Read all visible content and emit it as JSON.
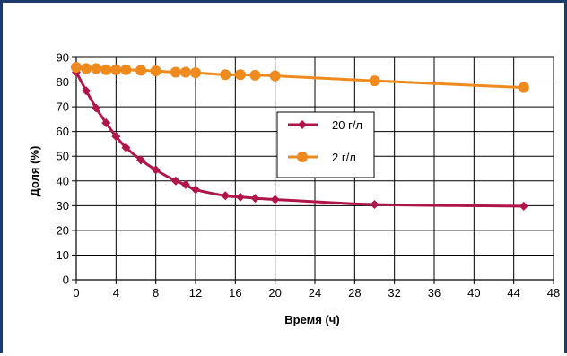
{
  "chart_data": {
    "type": "line",
    "xlabel": "Время (ч)",
    "ylabel": "Доля (%)",
    "xlim": [
      0,
      48
    ],
    "ylim": [
      0,
      90
    ],
    "xticks": [
      0,
      4,
      8,
      12,
      16,
      20,
      24,
      28,
      32,
      36,
      40,
      44,
      48
    ],
    "yticks": [
      0,
      10,
      20,
      30,
      40,
      50,
      60,
      70,
      80,
      90
    ],
    "grid": true,
    "legend_position": "center-right",
    "series": [
      {
        "name": "20 г/л",
        "color": "#b0154a",
        "marker": "diamond",
        "points": [
          [
            0,
            84
          ],
          [
            1,
            76.5
          ],
          [
            2,
            69.5
          ],
          [
            3,
            63.5
          ],
          [
            4,
            58
          ],
          [
            5,
            53.5
          ],
          [
            6.5,
            48.5
          ],
          [
            8,
            44.5
          ],
          [
            10,
            40
          ],
          [
            11,
            38.5
          ],
          [
            12,
            36.5
          ],
          [
            15,
            34
          ],
          [
            16.5,
            33.5
          ],
          [
            18,
            33
          ],
          [
            20,
            32.5
          ],
          [
            30,
            30.5
          ],
          [
            45,
            29.8
          ]
        ]
      },
      {
        "name": "2 г/л",
        "color": "#ee8a1e",
        "marker": "circle",
        "points": [
          [
            0,
            86
          ],
          [
            1,
            85.5
          ],
          [
            2,
            85.5
          ],
          [
            3,
            85
          ],
          [
            4,
            85
          ],
          [
            5,
            85
          ],
          [
            6.5,
            84.8
          ],
          [
            8,
            84.5
          ],
          [
            10,
            84
          ],
          [
            11,
            84
          ],
          [
            12,
            83.8
          ],
          [
            15,
            83
          ],
          [
            16.5,
            83
          ],
          [
            18,
            82.8
          ],
          [
            20,
            82.5
          ],
          [
            30,
            80.5
          ],
          [
            45,
            77.8
          ]
        ]
      }
    ]
  }
}
